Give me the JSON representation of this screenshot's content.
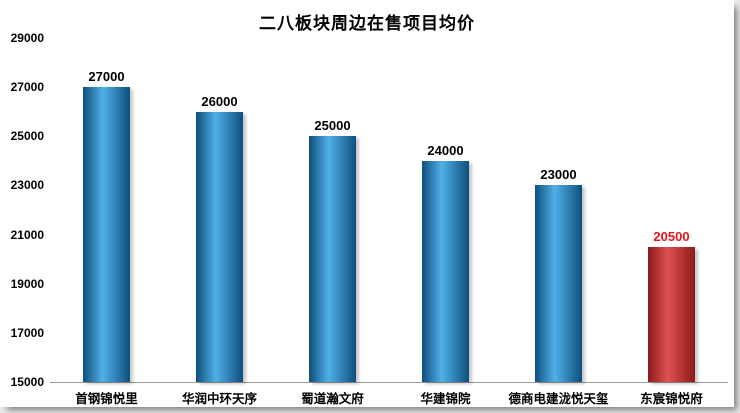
{
  "chart_data": {
    "type": "bar",
    "title": "二八板块周边在售项目均价",
    "categories": [
      "首钢锦悦里",
      "华润中环天序",
      "蜀道瀚文府",
      "华建锦院",
      "德商电建泷悦天玺",
      "东宸锦悦府"
    ],
    "values": [
      27000,
      26000,
      25000,
      24000,
      23000,
      20500
    ],
    "bar_color_keys": [
      "blue",
      "blue",
      "blue",
      "blue",
      "blue",
      "red"
    ],
    "value_label_colors": [
      "#000000",
      "#000000",
      "#000000",
      "#000000",
      "#000000",
      "#e8151e"
    ],
    "ylim": [
      15000,
      29000
    ],
    "yticks": [
      29000,
      27000,
      25000,
      23000,
      21000,
      19000,
      17000,
      15000
    ],
    "grid": false,
    "legend": "none",
    "colors": {
      "blue_dark": "#0f4f7d",
      "blue_light": "#4fb0e8",
      "red_dark": "#8c1b1b",
      "red_light": "#e05050"
    }
  }
}
